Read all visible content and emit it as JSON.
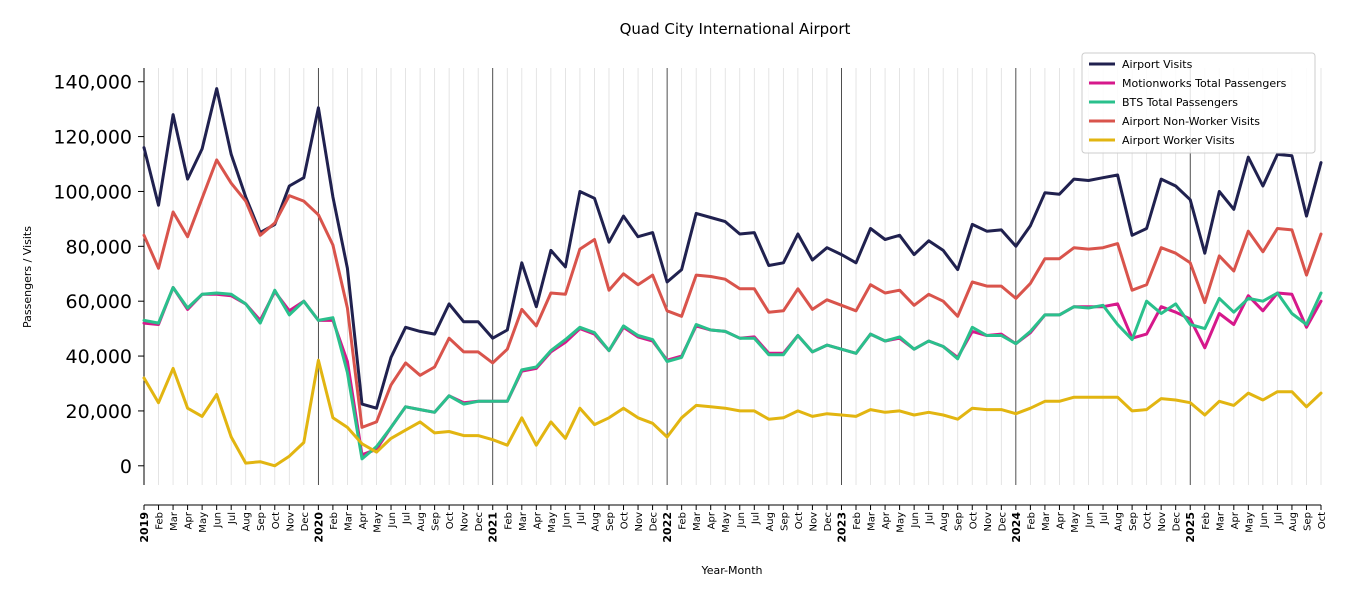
{
  "chart_data": {
    "type": "line",
    "title": "Quad City International Airport",
    "xlabel": "Year-Month",
    "ylabel": "Passengers / Visits",
    "ylim": [
      -7000,
      145000
    ],
    "yticks": [
      0,
      20000,
      40000,
      60000,
      80000,
      100000,
      120000,
      140000
    ],
    "ytick_labels": [
      "0",
      "20,000",
      "40,000",
      "60,000",
      "80,000",
      "100,000",
      "120,000",
      "140,000"
    ],
    "legend_position": "top-right",
    "grid": "vertical monthly gridlines, darker lines at year boundaries",
    "x": [
      "2019",
      "Feb",
      "Mar",
      "Apr",
      "May",
      "Jun",
      "Jul",
      "Aug",
      "Sep",
      "Oct",
      "Nov",
      "Dec",
      "2020",
      "Feb",
      "Mar",
      "Apr",
      "May",
      "Jun",
      "Jul",
      "Aug",
      "Sep",
      "Oct",
      "Nov",
      "Dec",
      "2021",
      "Feb",
      "Mar",
      "Apr",
      "May",
      "Jun",
      "Jul",
      "Aug",
      "Sep",
      "Oct",
      "Nov",
      "Dec",
      "2022",
      "Feb",
      "Mar",
      "Apr",
      "May",
      "Jun",
      "Jul",
      "Aug",
      "Sep",
      "Oct",
      "Nov",
      "Dec",
      "2023",
      "Feb",
      "Mar",
      "Apr",
      "May",
      "Jun",
      "Jul",
      "Aug",
      "Sep",
      "Oct",
      "Nov",
      "Dec",
      "2024",
      "Feb",
      "Mar",
      "Apr",
      "May",
      "Jun",
      "Jul",
      "Aug",
      "Sep",
      "Oct",
      "Nov",
      "Dec",
      "2025",
      "Feb",
      "Mar",
      "Apr",
      "May",
      "Jun",
      "Jul",
      "Aug",
      "Sep",
      "Oct"
    ],
    "series": [
      {
        "name": "Airport Visits",
        "color": "#20214f",
        "values": [
          116000,
          95000,
          128000,
          104500,
          115500,
          137500,
          113500,
          98000,
          85000,
          88000,
          102000,
          105000,
          130500,
          98000,
          72000,
          22500,
          21000,
          39500,
          50500,
          49000,
          48000,
          59000,
          52500,
          52500,
          46500,
          49500,
          74000,
          58000,
          78500,
          72500,
          100000,
          97500,
          81500,
          91000,
          83500,
          85000,
          67000,
          71500,
          92000,
          90500,
          89000,
          84500,
          85000,
          73000,
          74000,
          84500,
          75000,
          79500,
          77000,
          74000,
          86500,
          82500,
          84000,
          77000,
          82000,
          78500,
          71500,
          88000,
          85500,
          86000,
          80000,
          87500,
          99500,
          99000,
          104500,
          104000,
          105000,
          106000,
          84000,
          86500,
          104500,
          102000,
          97000,
          77500,
          100000,
          93500,
          112500,
          102000,
          113500,
          113000,
          91000,
          110500
        ]
      },
      {
        "name": "Motionworks Total Passengers",
        "color": "#d6188b",
        "values": [
          52000,
          51500,
          65000,
          57000,
          62500,
          62500,
          62000,
          59000,
          53000,
          63500,
          56500,
          60000,
          53000,
          53000,
          38000,
          4000,
          6000,
          14000,
          21500,
          20500,
          19500,
          25500,
          23000,
          23500,
          23500,
          23500,
          34500,
          35500,
          41500,
          45000,
          50000,
          48000,
          42000,
          50500,
          47000,
          45500,
          38500,
          40000,
          51000,
          49500,
          49000,
          46500,
          47000,
          41000,
          41000,
          47500,
          41500,
          44000,
          42500,
          41000,
          48000,
          45500,
          46500,
          42500,
          45500,
          43500,
          39500,
          49000,
          47500,
          48000,
          44500,
          48500,
          55000,
          55000,
          58000,
          58000,
          58000,
          59000,
          46500,
          48000,
          58000,
          56000,
          53500,
          43000,
          55500,
          51500,
          62000,
          56500,
          63000,
          62500,
          50500,
          60000
        ]
      },
      {
        "name": "BTS Total Passengers",
        "color": "#2ac08c",
        "values": [
          53000,
          52000,
          65000,
          57500,
          62500,
          63000,
          62500,
          59000,
          52000,
          64000,
          55000,
          60000,
          53000,
          54000,
          34000,
          2500,
          7000,
          14000,
          21500,
          20500,
          19500,
          25500,
          22500,
          23500,
          23500,
          23500,
          35000,
          36000,
          42000,
          46000,
          50500,
          48500,
          42000,
          51000,
          47500,
          46000,
          38000,
          39500,
          51500,
          49500,
          49000,
          46500,
          46500,
          40500,
          40500,
          47500,
          41500,
          44000,
          42500,
          41000,
          48000,
          45500,
          47000,
          42500,
          45500,
          43500,
          39000,
          50500,
          47500,
          47500,
          44500,
          49000,
          55000,
          55000,
          58000,
          57500,
          58500,
          51500,
          46000,
          60000,
          55500,
          59000,
          51500,
          50000,
          61000,
          56000,
          61000,
          60000,
          63000,
          55500,
          51500,
          63000
        ]
      },
      {
        "name": "Airport Non-Worker Visits",
        "color": "#d9544c",
        "values": [
          84000,
          72000,
          92500,
          83500,
          97500,
          111500,
          103000,
          96500,
          84000,
          88500,
          98500,
          96500,
          91500,
          80500,
          57500,
          14000,
          16000,
          29500,
          37500,
          33000,
          36000,
          46500,
          41500,
          41500,
          37500,
          42500,
          57000,
          51000,
          63000,
          62500,
          79000,
          82500,
          64000,
          70000,
          66000,
          69500,
          56500,
          54500,
          69500,
          69000,
          68000,
          64500,
          64500,
          56000,
          56500,
          64500,
          57000,
          60500,
          58500,
          56500,
          66000,
          63000,
          64000,
          58500,
          62500,
          60000,
          54500,
          67000,
          65500,
          65500,
          61000,
          66500,
          75500,
          75500,
          79500,
          79000,
          79500,
          81000,
          64000,
          66000,
          79500,
          77500,
          74000,
          59500,
          76500,
          71000,
          85500,
          78000,
          86500,
          86000,
          69500,
          84500
        ]
      },
      {
        "name": "Airport Worker Visits",
        "color": "#e2b511",
        "values": [
          32000,
          23000,
          35500,
          21000,
          18000,
          26000,
          10500,
          1000,
          1500,
          0,
          3500,
          8500,
          38500,
          17500,
          14000,
          8000,
          5000,
          10000,
          13000,
          16000,
          12000,
          12500,
          11000,
          11000,
          9500,
          7500,
          17500,
          7500,
          16000,
          10000,
          21000,
          15000,
          17500,
          21000,
          17500,
          15500,
          10500,
          17500,
          22000,
          21500,
          21000,
          20000,
          20000,
          17000,
          17500,
          20000,
          18000,
          19000,
          18500,
          18000,
          20500,
          19500,
          20000,
          18500,
          19500,
          18500,
          17000,
          21000,
          20500,
          20500,
          19000,
          21000,
          23500,
          23500,
          25000,
          25000,
          25000,
          25000,
          20000,
          20500,
          24500,
          24000,
          23000,
          18500,
          23500,
          22000,
          26500,
          24000,
          27000,
          27000,
          21500,
          26500
        ]
      }
    ]
  }
}
